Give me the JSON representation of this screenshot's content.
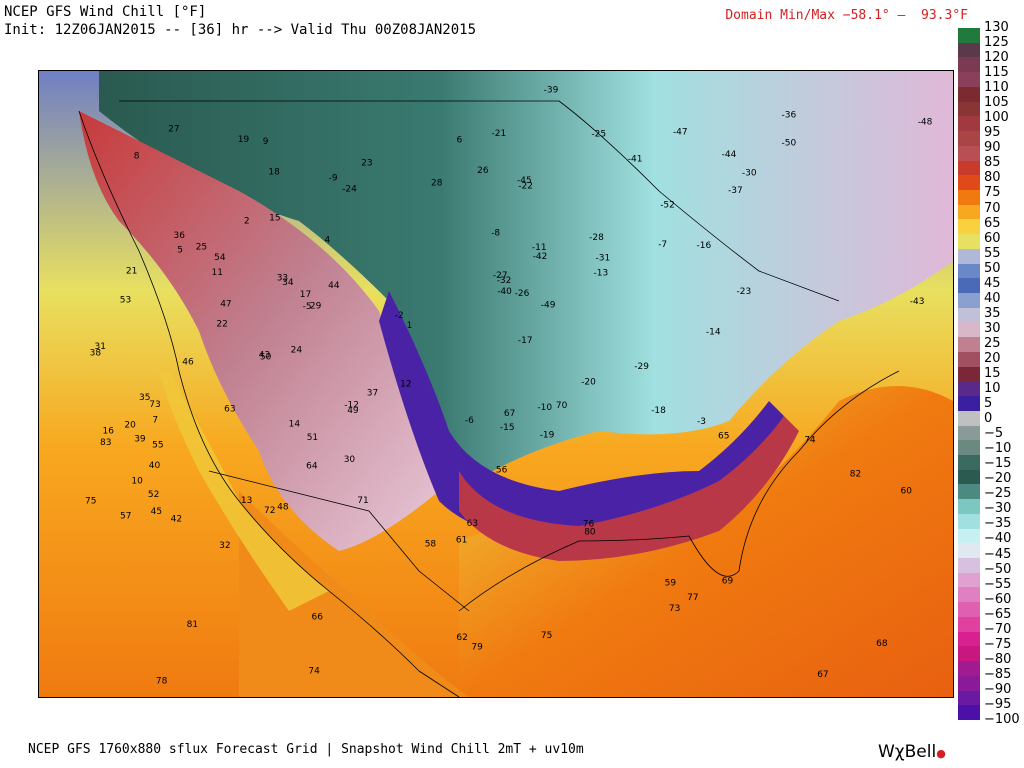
{
  "header": {
    "line1": "NCEP GFS Wind Chill [°F]",
    "line2": "Init: 12Z06JAN2015 -- [36] hr --> Valid Thu 00Z08JAN2015",
    "domain": "Domain Min/Max −58.1° –  93.3°F"
  },
  "footer": {
    "source": "NCEP GFS 1760x880 sflux Forecast Grid | Snapshot Wind Chill 2mT + uv10m",
    "brand": "WχBell"
  },
  "colorbar": {
    "labels": [
      "130",
      "125",
      "120",
      "115",
      "110",
      "105",
      "100",
      "95",
      "90",
      "85",
      "80",
      "75",
      "70",
      "65",
      "60",
      "55",
      "50",
      "45",
      "40",
      "35",
      "30",
      "25",
      "20",
      "15",
      "10",
      "5",
      "0",
      "−5",
      "−10",
      "−15",
      "−20",
      "−25",
      "−30",
      "−35",
      "−40",
      "−45",
      "−50",
      "−55",
      "−60",
      "−65",
      "−70",
      "−75",
      "−80",
      "−85",
      "−90",
      "−95",
      "−100"
    ],
    "colors": [
      "#1f7a3c",
      "#5a3a4a",
      "#7a3b52",
      "#8a4058",
      "#7a2a30",
      "#8a3535",
      "#a03a40",
      "#a84545",
      "#b84f55",
      "#c83a2a",
      "#e04a1a",
      "#f07a10",
      "#f8a820",
      "#f8d040",
      "#e8e060",
      "#b0b8d8",
      "#6a88c8",
      "#4a6ab8",
      "#8aa0d0",
      "#c0c0d8",
      "#d8b8c8",
      "#c08090",
      "#a05060",
      "#7a2838",
      "#5a2a8a",
      "#3a20a0",
      "#c0c0c0",
      "#8a9a98",
      "#6a8a80",
      "#3a6a60",
      "#2a5a50",
      "#4a8a80",
      "#7ac8c0",
      "#a0e0e0",
      "#c8f0f0",
      "#e0e8f0",
      "#d8c0e0",
      "#e0a0d0",
      "#e080c0",
      "#e060b0",
      "#e040a0",
      "#d82090",
      "#c81880",
      "#a01a90",
      "#8a1a98",
      "#6a1aa0",
      "#4a10a8"
    ]
  },
  "map": {
    "title": "Wind chill forecast map",
    "values": [
      {
        "t": "-26",
        "x": -1,
        "y": -1
      },
      {
        "t": "-24",
        "x": -1,
        "y": -1
      },
      {
        "t": "-27",
        "x": -1,
        "y": -1
      },
      {
        "t": "-32",
        "x": -1,
        "y": -1
      },
      {
        "t": "-30",
        "x": -1,
        "y": -1
      },
      {
        "t": "-31",
        "x": -1,
        "y": -1
      },
      {
        "t": "-25",
        "x": -1,
        "y": -1
      },
      {
        "t": "-22",
        "x": -1,
        "y": -1
      },
      {
        "t": "-36",
        "x": -1,
        "y": -1
      },
      {
        "t": "-37",
        "x": -1,
        "y": -1
      },
      {
        "t": "-39",
        "x": -1,
        "y": -1
      },
      {
        "t": "-43",
        "x": -1,
        "y": -1
      },
      {
        "t": "-45",
        "x": -1,
        "y": -1
      },
      {
        "t": "-48",
        "x": -1,
        "y": -1
      },
      {
        "t": "-52",
        "x": -1,
        "y": -1
      },
      {
        "t": "-50",
        "x": -1,
        "y": -1
      },
      {
        "t": "-49",
        "x": -1,
        "y": -1
      },
      {
        "t": "-47",
        "x": -1,
        "y": -1
      },
      {
        "t": "-44",
        "x": -1,
        "y": -1
      },
      {
        "t": "-42",
        "x": -1,
        "y": -1
      },
      {
        "t": "-41",
        "x": -1,
        "y": -1
      },
      {
        "t": "-40",
        "x": -1,
        "y": -1
      },
      {
        "t": "45",
        "x": -1,
        "y": -1
      },
      {
        "t": "47",
        "x": -1,
        "y": -1
      },
      {
        "t": "50",
        "x": -1,
        "y": -1
      },
      {
        "t": "51",
        "x": -1,
        "y": -1
      },
      {
        "t": "53",
        "x": -1,
        "y": -1
      },
      {
        "t": "54",
        "x": -1,
        "y": -1
      },
      {
        "t": "57",
        "x": -1,
        "y": -1
      },
      {
        "t": "59",
        "x": -1,
        "y": -1
      },
      {
        "t": "60",
        "x": -1,
        "y": -1
      },
      {
        "t": "61",
        "x": -1,
        "y": -1
      },
      {
        "t": "62",
        "x": -1,
        "y": -1
      },
      {
        "t": "63",
        "x": -1,
        "y": -1
      },
      {
        "t": "64",
        "x": -1,
        "y": -1
      },
      {
        "t": "65",
        "x": -1,
        "y": -1
      },
      {
        "t": "66",
        "x": -1,
        "y": -1
      },
      {
        "t": "67",
        "x": -1,
        "y": -1
      },
      {
        "t": "68",
        "x": -1,
        "y": -1
      },
      {
        "t": "69",
        "x": -1,
        "y": -1
      },
      {
        "t": "70",
        "x": -1,
        "y": -1
      },
      {
        "t": "71",
        "x": -1,
        "y": -1
      },
      {
        "t": "72",
        "x": -1,
        "y": -1
      },
      {
        "t": "73",
        "x": -1,
        "y": -1
      },
      {
        "t": "74",
        "x": -1,
        "y": -1
      },
      {
        "t": "75",
        "x": -1,
        "y": -1
      },
      {
        "t": "76",
        "x": -1,
        "y": -1
      },
      {
        "t": "78",
        "x": -1,
        "y": -1
      },
      {
        "t": "79",
        "x": -1,
        "y": -1
      },
      {
        "t": "80",
        "x": -1,
        "y": -1
      },
      {
        "t": "81",
        "x": -1,
        "y": -1
      },
      {
        "t": "82",
        "x": -1,
        "y": -1
      },
      {
        "t": "83",
        "x": -1,
        "y": -1
      },
      {
        "t": "77",
        "x": -1,
        "y": -1
      },
      {
        "t": "48",
        "x": -1,
        "y": -1
      },
      {
        "t": "52",
        "x": -1,
        "y": -1
      },
      {
        "t": "63",
        "x": -1,
        "y": -1
      },
      {
        "t": "73",
        "x": -1,
        "y": -1
      },
      {
        "t": "75",
        "x": -1,
        "y": -1
      },
      {
        "t": "74",
        "x": -1,
        "y": -1
      },
      {
        "t": "67",
        "x": -1,
        "y": -1
      },
      {
        "t": "22",
        "x": -1,
        "y": -1
      },
      {
        "t": "21",
        "x": -1,
        "y": -1
      },
      {
        "t": "25",
        "x": -1,
        "y": -1
      },
      {
        "t": "28",
        "x": -1,
        "y": -1
      },
      {
        "t": "27",
        "x": -1,
        "y": -1
      },
      {
        "t": "23",
        "x": -1,
        "y": -1
      },
      {
        "t": "18",
        "x": -1,
        "y": -1
      },
      {
        "t": "17",
        "x": -1,
        "y": -1
      },
      {
        "t": "16",
        "x": -1,
        "y": -1
      },
      {
        "t": "14",
        "x": -1,
        "y": -1
      },
      {
        "t": "13",
        "x": -1,
        "y": -1
      },
      {
        "t": "12",
        "x": -1,
        "y": -1
      },
      {
        "t": "11",
        "x": -1,
        "y": -1
      },
      {
        "t": "10",
        "x": -1,
        "y": -1
      },
      {
        "t": "8",
        "x": -1,
        "y": -1
      },
      {
        "t": "5",
        "x": -1,
        "y": -1
      },
      {
        "t": "-5",
        "x": -1,
        "y": -1
      },
      {
        "t": "-8",
        "x": -1,
        "y": -1
      },
      {
        "t": "-10",
        "x": -1,
        "y": -1
      },
      {
        "t": "-11",
        "x": -1,
        "y": -1
      },
      {
        "t": "-12",
        "x": -1,
        "y": -1
      },
      {
        "t": "-13",
        "x": -1,
        "y": -1
      },
      {
        "t": "-14",
        "x": -1,
        "y": -1
      },
      {
        "t": "-15",
        "x": -1,
        "y": -1
      },
      {
        "t": "-16",
        "x": -1,
        "y": -1
      },
      {
        "t": "-17",
        "x": -1,
        "y": -1
      },
      {
        "t": "-18",
        "x": -1,
        "y": -1
      },
      {
        "t": "-19",
        "x": -1,
        "y": -1
      },
      {
        "t": "-20",
        "x": -1,
        "y": -1
      },
      {
        "t": "-21",
        "x": -1,
        "y": -1
      },
      {
        "t": "-23",
        "x": -1,
        "y": -1
      },
      {
        "t": "-28",
        "x": -1,
        "y": -1
      },
      {
        "t": "-29",
        "x": -1,
        "y": -1
      },
      {
        "t": "29",
        "x": -1,
        "y": -1
      },
      {
        "t": "30",
        "x": -1,
        "y": -1
      },
      {
        "t": "31",
        "x": -1,
        "y": -1
      },
      {
        "t": "32",
        "x": -1,
        "y": -1
      },
      {
        "t": "33",
        "x": -1,
        "y": -1
      },
      {
        "t": "34",
        "x": -1,
        "y": -1
      },
      {
        "t": "35",
        "x": -1,
        "y": -1
      },
      {
        "t": "36",
        "x": -1,
        "y": -1
      },
      {
        "t": "37",
        "x": -1,
        "y": -1
      },
      {
        "t": "38",
        "x": -1,
        "y": -1
      },
      {
        "t": "39",
        "x": -1,
        "y": -1
      },
      {
        "t": "40",
        "x": -1,
        "y": -1
      },
      {
        "t": "42",
        "x": -1,
        "y": -1
      },
      {
        "t": "43",
        "x": -1,
        "y": -1
      },
      {
        "t": "44",
        "x": -1,
        "y": -1
      },
      {
        "t": "46",
        "x": -1,
        "y": -1
      },
      {
        "t": "49",
        "x": -1,
        "y": -1
      },
      {
        "t": "55",
        "x": -1,
        "y": -1
      },
      {
        "t": "56",
        "x": -1,
        "y": -1
      },
      {
        "t": "58",
        "x": -1,
        "y": -1
      },
      {
        "t": "19",
        "x": -1,
        "y": -1
      },
      {
        "t": "20",
        "x": -1,
        "y": -1
      },
      {
        "t": "24",
        "x": -1,
        "y": -1
      },
      {
        "t": "26",
        "x": -1,
        "y": -1
      },
      {
        "t": "15",
        "x": -1,
        "y": -1
      },
      {
        "t": "9",
        "x": -1,
        "y": -1
      },
      {
        "t": "7",
        "x": -1,
        "y": -1
      },
      {
        "t": "6",
        "x": -1,
        "y": -1
      },
      {
        "t": "4",
        "x": -1,
        "y": -1
      },
      {
        "t": "2",
        "x": -1,
        "y": -1
      },
      {
        "t": "1",
        "x": -1,
        "y": -1
      },
      {
        "t": "-2",
        "x": -1,
        "y": -1
      },
      {
        "t": "-3",
        "x": -1,
        "y": -1
      },
      {
        "t": "-6",
        "x": -1,
        "y": -1
      },
      {
        "t": "-7",
        "x": -1,
        "y": -1
      },
      {
        "t": "-9",
        "x": -1,
        "y": -1
      }
    ]
  }
}
